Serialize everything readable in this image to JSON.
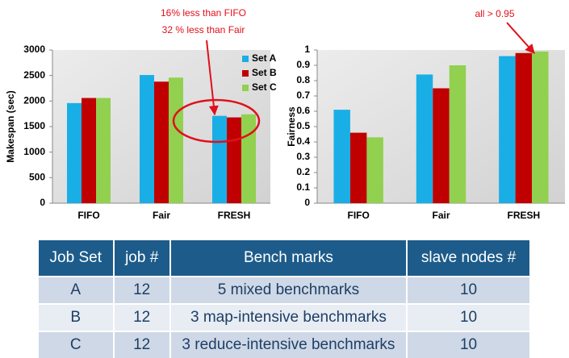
{
  "chart_data": [
    {
      "type": "bar",
      "y_label": "Makespan (sec)",
      "categories": [
        "FIFO",
        "Fair",
        "FRESH"
      ],
      "series": [
        {
          "name": "Set A",
          "color": "#1aaee6",
          "values": [
            1960,
            2510,
            1710
          ]
        },
        {
          "name": "Set B",
          "color": "#c00000",
          "values": [
            2060,
            2380,
            1680
          ]
        },
        {
          "name": "Set C",
          "color": "#92d050",
          "values": [
            2060,
            2460,
            1740
          ]
        }
      ],
      "ylim": [
        0,
        3000
      ],
      "yticks": [
        0,
        500,
        1000,
        1500,
        2000,
        2500,
        3000
      ],
      "legend": "upper right",
      "annotations": [
        "16% less than FIFO",
        "32 % less than Fair"
      ]
    },
    {
      "type": "bar",
      "y_label": "Fairness",
      "categories": [
        "FIFO",
        "Fair",
        "FRESH"
      ],
      "series": [
        {
          "color": "#1aaee6",
          "values": [
            0.61,
            0.84,
            0.96
          ]
        },
        {
          "color": "#c00000",
          "values": [
            0.46,
            0.75,
            0.98
          ]
        },
        {
          "color": "#92d050",
          "values": [
            0.43,
            0.9,
            0.99
          ]
        }
      ],
      "ylim": [
        0,
        1
      ],
      "yticks": [
        0,
        0.1,
        0.2,
        0.3,
        0.4,
        0.5,
        0.6,
        0.7,
        0.8,
        0.9,
        1
      ],
      "annotations": [
        "all > 0.95"
      ]
    }
  ],
  "table": {
    "header": [
      "Job Set",
      "job #",
      "Bench marks",
      "slave nodes #"
    ],
    "rows": [
      [
        "A",
        "12",
        "5 mixed benchmarks",
        "10"
      ],
      [
        "B",
        "12",
        "3 map-intensive benchmarks",
        "10"
      ],
      [
        "C",
        "12",
        "3 reduce-intensive benchmarks",
        "10"
      ]
    ]
  }
}
